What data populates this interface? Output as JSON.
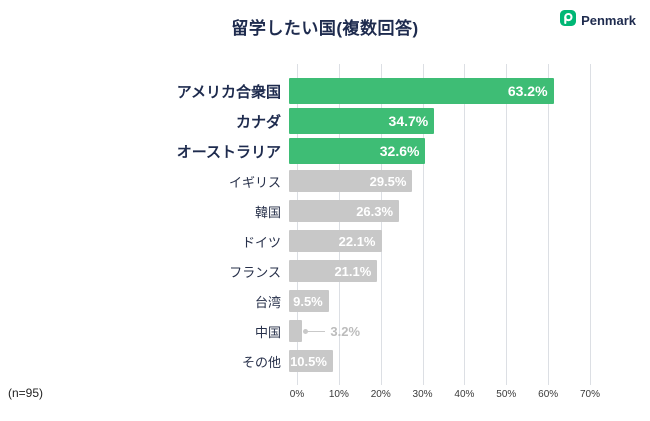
{
  "title": "留学したい国(複数回答)",
  "brand": "Penmark",
  "n_label": "(n=95)",
  "colors": {
    "bar_highlight": "#3ebd75",
    "bar_normal": "#c8c8c8",
    "logo_green": "#00b775",
    "text_navy": "#1e2b4e",
    "outside_label": "#bcbcbc",
    "gridline": "#dcdfe4"
  },
  "chart_data": {
    "type": "bar",
    "orientation": "horizontal",
    "title": "留学したい国(複数回答)",
    "n": 95,
    "xlim": [
      0,
      70
    ],
    "x_ticks": [
      "0%",
      "10%",
      "20%",
      "30%",
      "40%",
      "50%",
      "60%",
      "70%"
    ],
    "grid": true,
    "categories": [
      "アメリカ合衆国",
      "カナダ",
      "オーストラリア",
      "イギリス",
      "韓国",
      "ドイツ",
      "フランス",
      "台湾",
      "中国",
      "その他"
    ],
    "values": [
      63.2,
      34.7,
      32.6,
      29.5,
      26.3,
      22.1,
      21.1,
      9.5,
      3.2,
      10.5
    ],
    "rows": [
      {
        "label": "アメリカ合衆国",
        "value": 63.2,
        "display": "63.2%",
        "highlight": true,
        "label_outside": false
      },
      {
        "label": "カナダ",
        "value": 34.7,
        "display": "34.7%",
        "highlight": true,
        "label_outside": false
      },
      {
        "label": "オーストラリア",
        "value": 32.6,
        "display": "32.6%",
        "highlight": true,
        "label_outside": false
      },
      {
        "label": "イギリス",
        "value": 29.5,
        "display": "29.5%",
        "highlight": false,
        "label_outside": false
      },
      {
        "label": "韓国",
        "value": 26.3,
        "display": "26.3%",
        "highlight": false,
        "label_outside": false
      },
      {
        "label": "ドイツ",
        "value": 22.1,
        "display": "22.1%",
        "highlight": false,
        "label_outside": false
      },
      {
        "label": "フランス",
        "value": 21.1,
        "display": "21.1%",
        "highlight": false,
        "label_outside": false
      },
      {
        "label": "台湾",
        "value": 9.5,
        "display": "9.5%",
        "highlight": false,
        "label_outside": false
      },
      {
        "label": "中国",
        "value": 3.2,
        "display": "3.2%",
        "highlight": false,
        "label_outside": true
      },
      {
        "label": "その他",
        "value": 10.5,
        "display": "10.5%",
        "highlight": false,
        "label_outside": false
      }
    ]
  }
}
